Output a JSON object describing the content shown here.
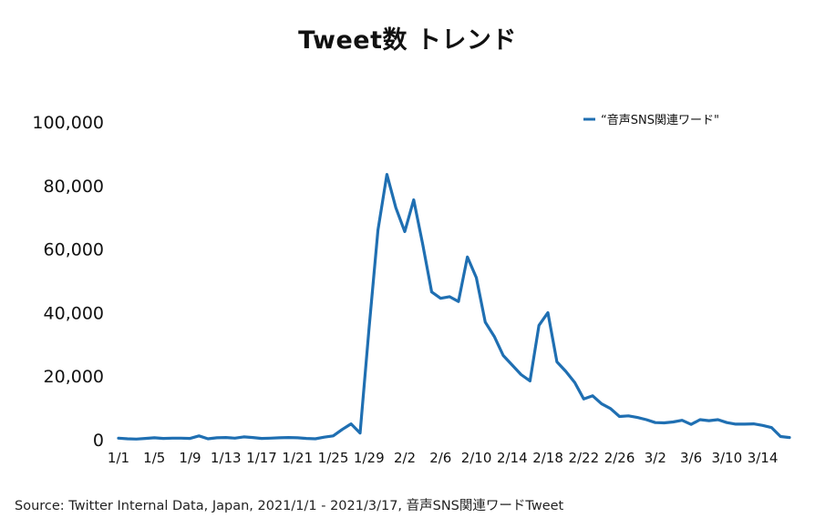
{
  "chart_data": {
    "type": "line",
    "title": "Tweet数 トレンド",
    "xlabel": "",
    "ylabel": "",
    "ylim": [
      0,
      100000
    ],
    "y_ticks": [
      0,
      20000,
      40000,
      60000,
      80000,
      100000
    ],
    "y_tick_labels": [
      "0",
      "20,000",
      "40,000",
      "60,000",
      "80,000",
      "100,000"
    ],
    "x_tick_labels": [
      "1/1",
      "1/5",
      "1/9",
      "1/13",
      "1/17",
      "1/21",
      "1/25",
      "1/29",
      "2/2",
      "2/6",
      "2/10",
      "2/14",
      "2/18",
      "2/22",
      "2/26",
      "3/2",
      "3/6",
      "3/10",
      "3/14"
    ],
    "x_tick_every": 4,
    "grid": false,
    "legend_position": "top-right",
    "color": "#1f6fb2",
    "series": [
      {
        "name": "“音声SNS関連ワード\"",
        "x": [
          "1/1",
          "1/2",
          "1/3",
          "1/4",
          "1/5",
          "1/6",
          "1/7",
          "1/8",
          "1/9",
          "1/10",
          "1/11",
          "1/12",
          "1/13",
          "1/14",
          "1/15",
          "1/16",
          "1/17",
          "1/18",
          "1/19",
          "1/20",
          "1/21",
          "1/22",
          "1/23",
          "1/24",
          "1/25",
          "1/26",
          "1/27",
          "1/28",
          "1/29",
          "1/30",
          "1/31",
          "2/1",
          "2/2",
          "2/3",
          "2/4",
          "2/5",
          "2/6",
          "2/7",
          "2/8",
          "2/9",
          "2/10",
          "2/11",
          "2/12",
          "2/13",
          "2/14",
          "2/15",
          "2/16",
          "2/17",
          "2/18",
          "2/19",
          "2/20",
          "2/21",
          "2/22",
          "2/23",
          "2/24",
          "2/25",
          "2/26",
          "2/27",
          "2/28",
          "3/1",
          "3/2",
          "3/3",
          "3/4",
          "3/5",
          "3/6",
          "3/7",
          "3/8",
          "3/9",
          "3/10",
          "3/11",
          "3/12",
          "3/13",
          "3/14",
          "3/15",
          "3/16",
          "3/17"
        ],
        "values": [
          500,
          300,
          200,
          400,
          600,
          400,
          500,
          500,
          400,
          1200,
          300,
          600,
          700,
          500,
          900,
          700,
          400,
          500,
          600,
          700,
          600,
          400,
          300,
          800,
          1200,
          3200,
          5000,
          2100,
          35000,
          66000,
          83500,
          73000,
          65500,
          75500,
          61500,
          46500,
          44500,
          45000,
          43500,
          57500,
          51000,
          37000,
          32500,
          26500,
          23500,
          20500,
          18500,
          36000,
          40000,
          24500,
          21500,
          18000,
          12800,
          13800,
          11300,
          9800,
          7300,
          7500,
          7000,
          6300,
          5400,
          5300,
          5600,
          6100,
          4800,
          6300,
          6000,
          6300,
          5400,
          4900,
          4900,
          5000,
          4500,
          3800,
          1000,
          700
        ]
      }
    ]
  },
  "source_note": "Source: Twitter Internal Data, Japan, 2021/1/1 - 2021/3/17, 音声SNS関連ワードTweet"
}
